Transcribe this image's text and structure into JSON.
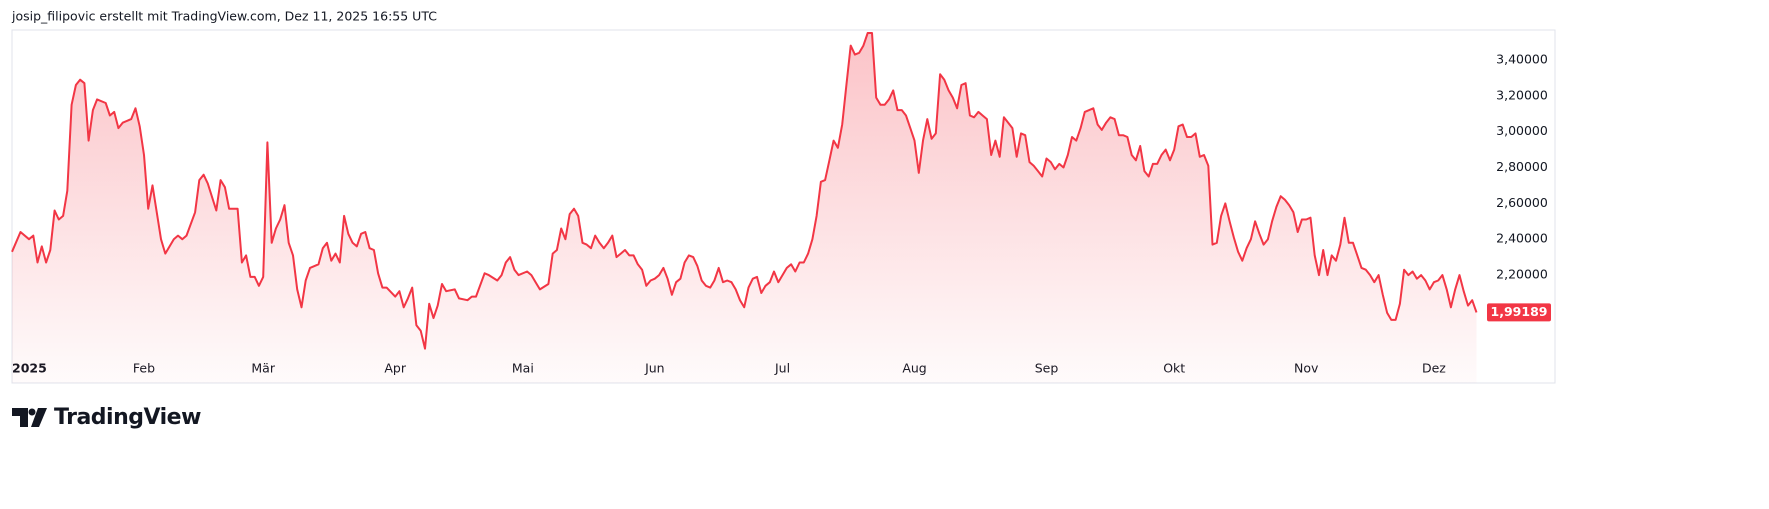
{
  "header": {
    "attribution": "josip_filipovic erstellt mit TradingView.com, Dez 11, 2025 16:55 UTC"
  },
  "footer": {
    "logo_text": "TradingView"
  },
  "chart_data": {
    "type": "area",
    "color": "#f23645",
    "x": [
      0,
      2,
      4,
      5,
      6,
      7,
      8,
      9,
      10,
      11,
      12,
      13,
      14,
      15,
      16,
      17,
      18,
      19,
      20,
      22,
      23,
      24,
      25,
      26,
      28,
      29,
      30,
      31,
      32,
      33,
      35,
      36,
      38,
      39,
      40,
      41,
      43,
      44,
      45,
      46,
      48,
      49,
      50,
      51,
      53,
      54,
      55,
      56,
      57,
      58,
      59,
      60,
      61,
      62,
      63,
      64,
      65,
      66,
      67,
      68,
      69,
      70,
      72,
      73,
      74,
      75,
      76,
      77,
      78,
      79,
      80,
      81,
      82,
      83,
      84,
      85,
      86,
      87,
      88,
      90,
      91,
      92,
      93,
      94,
      95,
      96,
      97,
      98,
      99,
      100,
      101,
      102,
      104,
      105,
      107,
      108,
      109,
      111,
      112,
      114,
      115,
      116,
      117,
      118,
      119,
      121,
      122,
      123,
      124,
      126,
      127,
      128,
      129,
      130,
      131,
      132,
      133,
      134,
      135,
      136,
      137,
      138,
      139,
      140,
      141,
      142,
      143,
      144,
      145,
      146,
      147,
      148,
      149,
      150,
      151,
      152,
      153,
      154,
      155,
      156,
      157,
      158,
      159,
      160,
      161,
      162,
      163,
      164,
      165,
      166,
      167,
      168,
      169,
      170,
      171,
      172,
      173,
      174,
      175,
      176,
      177,
      178,
      179,
      180,
      182,
      183,
      184,
      185,
      186,
      187,
      188,
      189,
      190,
      191,
      192,
      193,
      194,
      195,
      196,
      197,
      198,
      199,
      200,
      201,
      202,
      203,
      204,
      205,
      206,
      207,
      208,
      209,
      210,
      211,
      212,
      213,
      214,
      215,
      216,
      217,
      218,
      219,
      220,
      221,
      222,
      223,
      224,
      225,
      226,
      227,
      228,
      229,
      230,
      231,
      232,
      233,
      234,
      235,
      236,
      237,
      238,
      239,
      240,
      241,
      242,
      243,
      244,
      245,
      246,
      247,
      248,
      249,
      250,
      251,
      252,
      254,
      255,
      256,
      257,
      258,
      259,
      260,
      261,
      262,
      263,
      264,
      265,
      266,
      267,
      268,
      269,
      270,
      271,
      272,
      273,
      274,
      275,
      276,
      277,
      278,
      279,
      280,
      281,
      282,
      283,
      284,
      285,
      286,
      287,
      288,
      289,
      290,
      291,
      292,
      293,
      294,
      295,
      296,
      297,
      298,
      299,
      300,
      301,
      302,
      303,
      304,
      305,
      306,
      307,
      308,
      309,
      310,
      311,
      312,
      313,
      314,
      315,
      316,
      317,
      318,
      319,
      320,
      321,
      322,
      323,
      324,
      325,
      326,
      327,
      328,
      329,
      330,
      331,
      332,
      333,
      334,
      335,
      336,
      337,
      338,
      339,
      340,
      341,
      342,
      343,
      344
    ],
    "values": [
      2.33,
      2.44,
      2.4,
      2.42,
      2.27,
      2.36,
      2.27,
      2.34,
      2.56,
      2.51,
      2.53,
      2.67,
      3.15,
      3.26,
      3.29,
      3.27,
      2.95,
      3.12,
      3.18,
      3.16,
      3.09,
      3.11,
      3.02,
      3.05,
      3.07,
      3.13,
      3.03,
      2.87,
      2.57,
      2.7,
      2.4,
      2.32,
      2.4,
      2.42,
      2.4,
      2.42,
      2.55,
      2.73,
      2.76,
      2.71,
      2.56,
      2.73,
      2.69,
      2.57,
      2.57,
      2.27,
      2.31,
      2.19,
      2.19,
      2.14,
      2.19,
      2.94,
      2.38,
      2.46,
      2.51,
      2.59,
      2.38,
      2.31,
      2.12,
      2.02,
      2.17,
      2.24,
      2.26,
      2.35,
      2.38,
      2.28,
      2.32,
      2.27,
      2.53,
      2.43,
      2.38,
      2.36,
      2.43,
      2.44,
      2.35,
      2.34,
      2.21,
      2.13,
      2.13,
      2.08,
      2.11,
      2.02,
      2.07,
      2.13,
      1.92,
      1.89,
      1.79,
      2.04,
      1.96,
      2.03,
      2.15,
      2.11,
      2.12,
      2.07,
      2.06,
      2.08,
      2.08,
      2.21,
      2.2,
      2.17,
      2.2,
      2.27,
      2.3,
      2.23,
      2.2,
      2.22,
      2.2,
      2.16,
      2.12,
      2.15,
      2.32,
      2.34,
      2.46,
      2.4,
      2.54,
      2.57,
      2.53,
      2.38,
      2.37,
      2.35,
      2.42,
      2.38,
      2.35,
      2.38,
      2.42,
      2.3,
      2.32,
      2.34,
      2.31,
      2.31,
      2.26,
      2.23,
      2.14,
      2.17,
      2.18,
      2.2,
      2.24,
      2.18,
      2.09,
      2.16,
      2.18,
      2.27,
      2.31,
      2.3,
      2.25,
      2.17,
      2.14,
      2.13,
      2.17,
      2.24,
      2.16,
      2.17,
      2.16,
      2.12,
      2.06,
      2.02,
      2.13,
      2.18,
      2.19,
      2.1,
      2.14,
      2.16,
      2.22,
      2.16,
      2.24,
      2.26,
      2.22,
      2.27,
      2.27,
      2.32,
      2.4,
      2.53,
      2.72,
      2.73,
      2.84,
      2.95,
      2.91,
      3.04,
      3.26,
      3.48,
      3.43,
      3.44,
      3.48,
      3.55,
      3.55,
      3.19,
      3.15,
      3.15,
      3.18,
      3.23,
      3.12,
      3.12,
      3.09,
      3.02,
      2.95,
      2.77,
      2.95,
      3.07,
      2.96,
      2.99,
      3.32,
      3.29,
      3.23,
      3.19,
      3.13,
      3.26,
      3.27,
      3.09,
      3.08,
      3.11,
      3.09,
      3.07,
      2.87,
      2.95,
      2.86,
      3.08,
      3.05,
      3.02,
      2.86,
      2.99,
      2.98,
      2.83,
      2.81,
      2.78,
      2.75,
      2.85,
      2.83,
      2.79,
      2.82,
      2.8,
      2.87,
      2.97,
      2.95,
      3.02,
      3.11,
      3.13,
      3.04,
      3.01,
      3.05,
      3.08,
      3.07,
      2.98,
      2.98,
      2.97,
      2.87,
      2.84,
      2.92,
      2.78,
      2.75,
      2.82,
      2.82,
      2.87,
      2.9,
      2.84,
      2.9,
      3.03,
      3.04,
      2.97,
      2.97,
      2.99,
      2.86,
      2.87,
      2.81,
      2.37,
      2.38,
      2.53,
      2.6,
      2.5,
      2.41,
      2.33,
      2.28,
      2.35,
      2.4,
      2.5,
      2.43,
      2.37,
      2.4,
      2.5,
      2.58,
      2.64,
      2.62,
      2.59,
      2.55,
      2.44,
      2.51,
      2.51,
      2.52,
      2.31,
      2.2,
      2.34,
      2.2,
      2.31,
      2.28,
      2.37,
      2.52,
      2.38,
      2.38,
      2.31,
      2.24,
      2.23,
      2.2,
      2.16,
      2.2,
      2.09,
      1.99,
      1.95,
      1.95,
      2.04,
      2.23,
      2.2,
      2.22,
      2.18,
      2.2,
      2.17,
      2.12,
      2.16,
      2.17,
      2.2,
      2.12,
      2.02,
      2.12,
      2.2,
      2.11,
      2.03,
      2.06,
      1.99189
    ],
    "xlim": [
      0,
      346
    ],
    "xticks": [
      {
        "value": 0,
        "label": "2025"
      },
      {
        "value": 31,
        "label": "Feb"
      },
      {
        "value": 59,
        "label": "Mär"
      },
      {
        "value": 90,
        "label": "Apr"
      },
      {
        "value": 120,
        "label": "Mai"
      },
      {
        "value": 151,
        "label": "Jun"
      },
      {
        "value": 181,
        "label": "Jul"
      },
      {
        "value": 212,
        "label": "Aug"
      },
      {
        "value": 243,
        "label": "Sep"
      },
      {
        "value": 273,
        "label": "Okt"
      },
      {
        "value": 304,
        "label": "Nov"
      },
      {
        "value": 334,
        "label": "Dez"
      }
    ],
    "ylim": [
      1.598,
      3.567
    ],
    "yticks": [
      {
        "value": 2.2,
        "label": "2,20000"
      },
      {
        "value": 2.4,
        "label": "2,40000"
      },
      {
        "value": 2.6,
        "label": "2,60000"
      },
      {
        "value": 2.8,
        "label": "2,80000"
      },
      {
        "value": 3.0,
        "label": "3,00000"
      },
      {
        "value": 3.2,
        "label": "3,20000"
      },
      {
        "value": 3.4,
        "label": "3,40000"
      }
    ],
    "last_price": {
      "value": 1.99189,
      "label": "1,99189"
    },
    "grid": false
  }
}
